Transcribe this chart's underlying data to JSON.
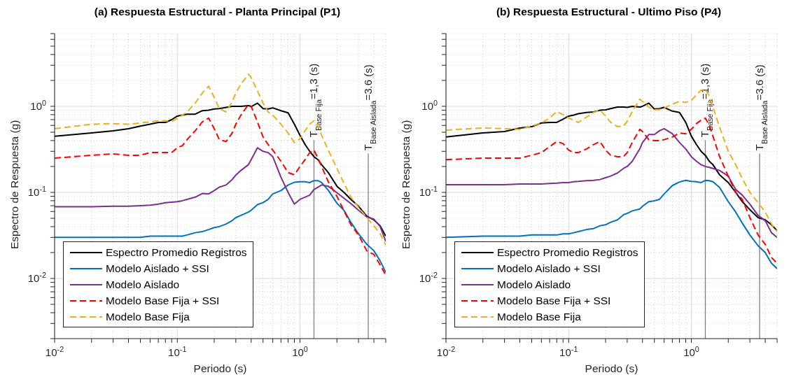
{
  "chart_data": [
    {
      "type": "line",
      "title": "(a) Respuesta Estructural - Planta Principal (P1)",
      "xlabel": "Periodo (s)",
      "ylabel": "Espectro de Respuesta (g)",
      "x": [
        0.01,
        0.02,
        0.03,
        0.04,
        0.05,
        0.06,
        0.07,
        0.08,
        0.09,
        0.1,
        0.11,
        0.12,
        0.14,
        0.16,
        0.18,
        0.2,
        0.22,
        0.25,
        0.28,
        0.3,
        0.33,
        0.38,
        0.4,
        0.45,
        0.5,
        0.55,
        0.6,
        0.7,
        0.8,
        0.9,
        1.0,
        1.1,
        1.2,
        1.3,
        1.4,
        1.5,
        1.7,
        2,
        2.3,
        2.6,
        3,
        3.5,
        4,
        4.5,
        5
      ],
      "series": [
        {
          "name": "Espectro Promedio Registros",
          "color": "#000000",
          "line_style": "solid",
          "values": [
            0.45,
            0.49,
            0.52,
            0.55,
            0.59,
            0.62,
            0.65,
            0.65,
            0.7,
            0.77,
            0.79,
            0.81,
            0.81,
            0.89,
            0.9,
            0.93,
            0.94,
            0.97,
            1.0,
            1.0,
            1.0,
            1.02,
            0.99,
            1.09,
            0.94,
            0.93,
            0.96,
            0.89,
            0.84,
            0.62,
            0.46,
            0.36,
            0.3,
            0.26,
            0.24,
            0.21,
            0.17,
            0.118,
            0.099,
            0.083,
            0.069,
            0.053,
            0.048,
            0.041,
            0.031
          ]
        },
        {
          "name": "Modelo Aislado + SSI",
          "color": "#0072bd",
          "line_style": "solid",
          "values": [
            0.03,
            0.03,
            0.03,
            0.03,
            0.03,
            0.031,
            0.031,
            0.031,
            0.031,
            0.031,
            0.031,
            0.032,
            0.034,
            0.035,
            0.037,
            0.039,
            0.04,
            0.043,
            0.047,
            0.051,
            0.054,
            0.059,
            0.062,
            0.072,
            0.076,
            0.083,
            0.096,
            0.105,
            0.122,
            0.131,
            0.133,
            0.133,
            0.13,
            0.137,
            0.137,
            0.13,
            0.106,
            0.075,
            0.061,
            0.045,
            0.033,
            0.025,
            0.021,
            0.016,
            0.0118
          ]
        },
        {
          "name": "Modelo Aislado",
          "color": "#7e2f8e",
          "line_style": "solid",
          "values": [
            0.068,
            0.068,
            0.069,
            0.069,
            0.07,
            0.071,
            0.073,
            0.076,
            0.077,
            0.078,
            0.08,
            0.083,
            0.088,
            0.097,
            0.096,
            0.105,
            0.115,
            0.122,
            0.141,
            0.159,
            0.18,
            0.21,
            0.24,
            0.33,
            0.3,
            0.29,
            0.26,
            0.15,
            0.1,
            0.073,
            0.083,
            0.088,
            0.093,
            0.108,
            0.115,
            0.122,
            0.118,
            0.099,
            0.085,
            0.074,
            0.062,
            0.052,
            0.049,
            0.04,
            0.027
          ]
        },
        {
          "name": "Modelo Base Fija + SSI",
          "color": "#ff0000",
          "line_style": "dashed",
          "values": [
            0.25,
            0.27,
            0.28,
            0.27,
            0.27,
            0.29,
            0.29,
            0.29,
            0.29,
            0.33,
            0.35,
            0.41,
            0.52,
            0.66,
            0.73,
            0.55,
            0.41,
            0.39,
            0.49,
            0.62,
            0.79,
            1.05,
            1.0,
            0.66,
            0.44,
            0.36,
            0.31,
            0.23,
            0.17,
            0.16,
            0.2,
            0.24,
            0.29,
            0.31,
            0.25,
            0.2,
            0.133,
            0.09,
            0.06,
            0.042,
            0.032,
            0.021,
            0.019,
            0.0144,
            0.0109
          ]
        },
        {
          "name": "Modelo Base Fija",
          "color": "#edb120",
          "line_style": "dashed",
          "values": [
            0.55,
            0.62,
            0.63,
            0.62,
            0.64,
            0.66,
            0.68,
            0.68,
            0.67,
            0.72,
            0.79,
            0.86,
            1.09,
            1.43,
            1.71,
            1.27,
            0.94,
            0.86,
            1.13,
            1.43,
            1.81,
            2.36,
            2.16,
            1.51,
            1.09,
            0.86,
            0.79,
            0.62,
            0.49,
            0.38,
            0.42,
            0.52,
            0.62,
            0.68,
            0.59,
            0.46,
            0.31,
            0.19,
            0.125,
            0.088,
            0.067,
            0.051,
            0.041,
            0.033,
            0.0245
          ]
        }
      ],
      "xlim": [
        0.01,
        5
      ],
      "ylim": [
        0.002,
        7
      ],
      "xticks": [
        {
          "value": 0.01,
          "label": "10$^{-2}$"
        },
        {
          "value": 0.02,
          "label": null
        },
        {
          "value": 0.03,
          "label": null
        },
        {
          "value": 0.04,
          "label": null
        },
        {
          "value": 0.05,
          "label": null
        },
        {
          "value": 0.06,
          "label": null
        },
        {
          "value": 0.07,
          "label": null
        },
        {
          "value": 0.08,
          "label": null
        },
        {
          "value": 0.09,
          "label": null
        },
        {
          "value": 0.1,
          "label": "10$^{-1}$"
        },
        {
          "value": 0.2,
          "label": null
        },
        {
          "value": 0.3,
          "label": null
        },
        {
          "value": 0.4,
          "label": null
        },
        {
          "value": 0.5,
          "label": null
        },
        {
          "value": 0.6,
          "label": null
        },
        {
          "value": 0.7,
          "label": null
        },
        {
          "value": 0.8,
          "label": null
        },
        {
          "value": 0.9,
          "label": null
        },
        {
          "value": 1,
          "label": "10$^{0}$"
        },
        {
          "value": 2,
          "label": null
        },
        {
          "value": 3,
          "label": null
        },
        {
          "value": 4,
          "label": null
        },
        {
          "value": 5,
          "label": null
        }
      ],
      "yticks": [
        {
          "value": 0.002,
          "label": null
        },
        {
          "value": 0.003,
          "label": null
        },
        {
          "value": 0.004,
          "label": null
        },
        {
          "value": 0.005,
          "label": null
        },
        {
          "value": 0.006,
          "label": null
        },
        {
          "value": 0.007,
          "label": null
        },
        {
          "value": 0.008,
          "label": null
        },
        {
          "value": 0.009,
          "label": null
        },
        {
          "value": 0.01,
          "label": "10$^{-2}$"
        },
        {
          "value": 0.02,
          "label": null
        },
        {
          "value": 0.03,
          "label": null
        },
        {
          "value": 0.04,
          "label": null
        },
        {
          "value": 0.05,
          "label": null
        },
        {
          "value": 0.06,
          "label": null
        },
        {
          "value": 0.07,
          "label": null
        },
        {
          "value": 0.08,
          "label": null
        },
        {
          "value": 0.09,
          "label": null
        },
        {
          "value": 0.1,
          "label": "10$^{-1}$"
        },
        {
          "value": 0.2,
          "label": null
        },
        {
          "value": 0.3,
          "label": null
        },
        {
          "value": 0.4,
          "label": null
        },
        {
          "value": 0.5,
          "label": null
        },
        {
          "value": 0.6,
          "label": null
        },
        {
          "value": 0.7,
          "label": null
        },
        {
          "value": 0.8,
          "label": null
        },
        {
          "value": 0.9,
          "label": null
        },
        {
          "value": 1,
          "label": "10$^{0}$"
        },
        {
          "value": 2,
          "label": null
        },
        {
          "value": 3,
          "label": null
        },
        {
          "value": 4,
          "label": null
        },
        {
          "value": 5,
          "label": null
        },
        {
          "value": 6,
          "label": null
        },
        {
          "value": 7,
          "label": null
        }
      ],
      "log": "xy",
      "grid": true,
      "legend": "bottom left",
      "marker": "none",
      "ref_lines": [
        {
          "axis": "x",
          "value": 1.3,
          "label": "T$_{Base Fija}$=1,3 (s)",
          "color": "#808080"
        },
        {
          "axis": "x",
          "value": 3.6,
          "label": "T$_{Base Aislada}$=3.6 (s)",
          "color": "#808080"
        }
      ]
    },
    {
      "type": "line",
      "title": "(b) Respuesta Estructural - Ultimo Piso (P4)",
      "xlabel": "Periodo (s)",
      "ylabel": "Espectro de Respuesta (g)",
      "x": [
        0.01,
        0.02,
        0.03,
        0.04,
        0.05,
        0.06,
        0.07,
        0.08,
        0.09,
        0.1,
        0.11,
        0.12,
        0.14,
        0.16,
        0.18,
        0.2,
        0.22,
        0.25,
        0.28,
        0.3,
        0.33,
        0.38,
        0.4,
        0.45,
        0.5,
        0.55,
        0.6,
        0.7,
        0.8,
        0.9,
        1.0,
        1.1,
        1.2,
        1.3,
        1.4,
        1.5,
        1.7,
        2,
        2.3,
        2.6,
        3,
        3.5,
        4,
        4.5,
        5
      ],
      "series": [
        {
          "name": "Espectro Promedio Registros",
          "color": "#000000",
          "line_style": "solid",
          "values": [
            0.44,
            0.49,
            0.51,
            0.56,
            0.58,
            0.64,
            0.65,
            0.65,
            0.71,
            0.77,
            0.79,
            0.82,
            0.85,
            0.86,
            0.9,
            0.91,
            0.94,
            0.98,
            0.98,
            0.97,
            1.0,
            0.98,
            1.0,
            1.09,
            0.93,
            0.94,
            0.97,
            0.88,
            0.85,
            0.65,
            0.45,
            0.36,
            0.3,
            0.27,
            0.23,
            0.21,
            0.16,
            0.13,
            0.1,
            0.078,
            0.063,
            0.051,
            0.048,
            0.042,
            0.036
          ]
        },
        {
          "name": "Modelo Aislado + SSI",
          "color": "#0072bd",
          "line_style": "solid",
          "values": [
            0.03,
            0.031,
            0.031,
            0.031,
            0.032,
            0.032,
            0.032,
            0.032,
            0.033,
            0.033,
            0.034,
            0.035,
            0.037,
            0.038,
            0.041,
            0.042,
            0.045,
            0.048,
            0.055,
            0.057,
            0.061,
            0.064,
            0.069,
            0.078,
            0.08,
            0.083,
            0.096,
            0.12,
            0.132,
            0.138,
            0.134,
            0.133,
            0.13,
            0.138,
            0.137,
            0.133,
            0.114,
            0.078,
            0.059,
            0.044,
            0.032,
            0.024,
            0.02,
            0.015,
            0.013
          ]
        },
        {
          "name": "Modelo Aislado",
          "color": "#7e2f8e",
          "line_style": "solid",
          "values": [
            0.123,
            0.123,
            0.123,
            0.125,
            0.125,
            0.125,
            0.127,
            0.128,
            0.13,
            0.13,
            0.133,
            0.134,
            0.137,
            0.138,
            0.141,
            0.148,
            0.155,
            0.168,
            0.19,
            0.2,
            0.23,
            0.32,
            0.38,
            0.47,
            0.47,
            0.52,
            0.55,
            0.48,
            0.38,
            0.32,
            0.26,
            0.23,
            0.21,
            0.2,
            0.195,
            0.19,
            0.18,
            0.154,
            0.108,
            0.093,
            0.073,
            0.054,
            0.047,
            0.034,
            0.03
          ]
        },
        {
          "name": "Modelo Base Fija + SSI",
          "color": "#ff0000",
          "line_style": "dashed",
          "values": [
            0.24,
            0.25,
            0.25,
            0.25,
            0.27,
            0.29,
            0.34,
            0.39,
            0.37,
            0.31,
            0.29,
            0.29,
            0.32,
            0.36,
            0.39,
            0.31,
            0.27,
            0.26,
            0.26,
            0.29,
            0.38,
            0.54,
            0.51,
            0.41,
            0.4,
            0.4,
            0.41,
            0.44,
            0.49,
            0.48,
            0.54,
            0.63,
            0.69,
            0.73,
            0.61,
            0.45,
            0.26,
            0.154,
            0.1,
            0.083,
            0.051,
            0.032,
            0.025,
            0.0175,
            0.015
          ]
        },
        {
          "name": "Modelo Base Fija",
          "color": "#edb120",
          "line_style": "dashed",
          "values": [
            0.53,
            0.56,
            0.55,
            0.54,
            0.59,
            0.64,
            0.73,
            0.87,
            0.8,
            0.73,
            0.69,
            0.65,
            0.75,
            0.85,
            0.9,
            0.77,
            0.65,
            0.58,
            0.59,
            0.67,
            0.87,
            1.21,
            1.14,
            0.98,
            0.91,
            0.92,
            0.95,
            1.06,
            1.14,
            1.11,
            1.17,
            1.36,
            1.54,
            1.58,
            1.32,
            0.98,
            0.57,
            0.3,
            0.21,
            0.145,
            0.1,
            0.076,
            0.059,
            0.043,
            0.035
          ]
        }
      ],
      "xlim": [
        0.01,
        5
      ],
      "ylim": [
        0.002,
        7
      ],
      "xticks": [
        {
          "value": 0.01,
          "label": "10$^{-2}$"
        },
        {
          "value": 0.02,
          "label": null
        },
        {
          "value": 0.03,
          "label": null
        },
        {
          "value": 0.04,
          "label": null
        },
        {
          "value": 0.05,
          "label": null
        },
        {
          "value": 0.06,
          "label": null
        },
        {
          "value": 0.07,
          "label": null
        },
        {
          "value": 0.08,
          "label": null
        },
        {
          "value": 0.09,
          "label": null
        },
        {
          "value": 0.1,
          "label": "10$^{-1}$"
        },
        {
          "value": 0.2,
          "label": null
        },
        {
          "value": 0.3,
          "label": null
        },
        {
          "value": 0.4,
          "label": null
        },
        {
          "value": 0.5,
          "label": null
        },
        {
          "value": 0.6,
          "label": null
        },
        {
          "value": 0.7,
          "label": null
        },
        {
          "value": 0.8,
          "label": null
        },
        {
          "value": 0.9,
          "label": null
        },
        {
          "value": 1,
          "label": "10$^{0}$"
        },
        {
          "value": 2,
          "label": null
        },
        {
          "value": 3,
          "label": null
        },
        {
          "value": 4,
          "label": null
        },
        {
          "value": 5,
          "label": null
        }
      ],
      "yticks": [
        {
          "value": 0.002,
          "label": null
        },
        {
          "value": 0.003,
          "label": null
        },
        {
          "value": 0.004,
          "label": null
        },
        {
          "value": 0.005,
          "label": null
        },
        {
          "value": 0.006,
          "label": null
        },
        {
          "value": 0.007,
          "label": null
        },
        {
          "value": 0.008,
          "label": null
        },
        {
          "value": 0.009,
          "label": null
        },
        {
          "value": 0.01,
          "label": "10$^{-2}$"
        },
        {
          "value": 0.02,
          "label": null
        },
        {
          "value": 0.03,
          "label": null
        },
        {
          "value": 0.04,
          "label": null
        },
        {
          "value": 0.05,
          "label": null
        },
        {
          "value": 0.06,
          "label": null
        },
        {
          "value": 0.07,
          "label": null
        },
        {
          "value": 0.08,
          "label": null
        },
        {
          "value": 0.09,
          "label": null
        },
        {
          "value": 0.1,
          "label": "10$^{-1}$"
        },
        {
          "value": 0.2,
          "label": null
        },
        {
          "value": 0.3,
          "label": null
        },
        {
          "value": 0.4,
          "label": null
        },
        {
          "value": 0.5,
          "label": null
        },
        {
          "value": 0.6,
          "label": null
        },
        {
          "value": 0.7,
          "label": null
        },
        {
          "value": 0.8,
          "label": null
        },
        {
          "value": 0.9,
          "label": null
        },
        {
          "value": 1,
          "label": "10$^{0}$"
        },
        {
          "value": 2,
          "label": null
        },
        {
          "value": 3,
          "label": null
        },
        {
          "value": 4,
          "label": null
        },
        {
          "value": 5,
          "label": null
        },
        {
          "value": 6,
          "label": null
        },
        {
          "value": 7,
          "label": null
        }
      ],
      "log": "xy",
      "grid": true,
      "legend": "bottom left",
      "marker": "none",
      "ref_lines": [
        {
          "axis": "x",
          "value": 1.3,
          "label": "T$_{Base Fija}$=1,3 (s)",
          "color": "#808080"
        },
        {
          "axis": "x",
          "value": 3.6,
          "label": "T$_{Base Aislada}$=3.6 (s)",
          "color": "#808080"
        }
      ]
    }
  ]
}
